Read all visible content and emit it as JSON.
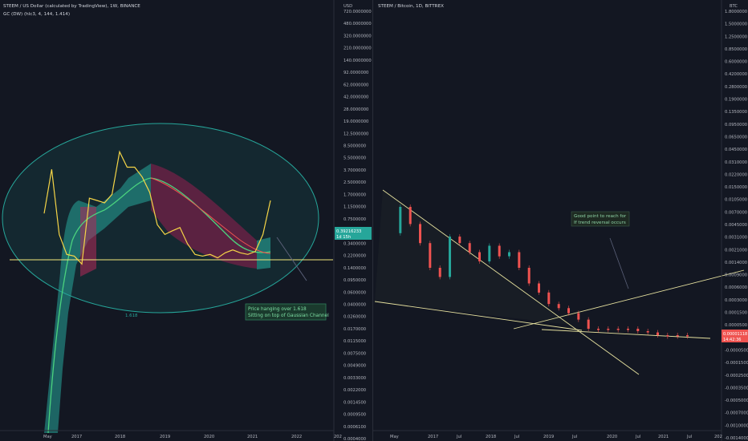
{
  "left_chart": {
    "title": "STEEM / US Dollar (calculated by TradingView), 1W, BINANCE",
    "indicator": "GC (DW) (hlc3, 4, 144, 1.414)",
    "currency": "USD",
    "price_ticks": [
      "720.0000000",
      "480.0000000",
      "320.0000000",
      "210.0000000",
      "140.0000000",
      "92.0000000",
      "62.0000000",
      "42.0000000",
      "28.0000000",
      "19.0000000",
      "12.5000000",
      "8.5000000",
      "5.5000000",
      "3.7000000",
      "2.5000000",
      "1.7000000",
      "1.1500000",
      "0.7500000",
      "0.5100000",
      "0.3400000",
      "0.2200000",
      "0.1400000",
      "0.0950000",
      "0.0600000",
      "0.0400000",
      "0.0260000",
      "0.0170000",
      "0.0115000",
      "0.0075000",
      "0.0049000",
      "0.0033000",
      "0.0022000",
      "0.0014500",
      "0.0009500",
      "0.0006100",
      "0.0004000"
    ],
    "time_ticks": [
      "May",
      "2017",
      "2018",
      "2019",
      "2020",
      "2021",
      "2022",
      "202"
    ],
    "last_price": "0.39216233",
    "last_price_countdown": "1d 15h",
    "fib_label": "1.618",
    "annotation_line1": "Price hanging over 1.618",
    "annotation_line2": "Sitting on top of Gaussian Channel"
  },
  "right_chart": {
    "title": "STEEM / Bitcoin, 1D, BITTREX",
    "currency": "BTC",
    "price_ticks": [
      "1.8000000",
      "1.5000000",
      "1.2500000",
      "0.8500000",
      "0.6000000",
      "0.4200000",
      "0.2800000",
      "0.1900000",
      "0.1350000",
      "0.0950000",
      "0.0650000",
      "0.0450000",
      "0.0310000",
      "0.0220000",
      "0.0150000",
      "0.0105000",
      "0.0070000",
      "0.0045000",
      "0.0031000",
      "0.0021000",
      "0.0014000",
      "0.0009000",
      "0.0006000",
      "0.0003000",
      "0.0001500",
      "0.0000500",
      "0.0000000",
      "-0.0000500",
      "-0.0001500",
      "-0.0002500",
      "-0.0003500",
      "-0.0005000",
      "-0.0007000",
      "-0.0010000",
      "-0.0014000"
    ],
    "time_ticks": [
      "May",
      "2017",
      "Jul",
      "2018",
      "Jul",
      "2019",
      "Jul",
      "2020",
      "Jul",
      "2021",
      "Jul",
      "202"
    ],
    "last_price": "0.00001118",
    "last_price_countdown": "14:42:36",
    "annotation_line1": "Good point to reach for",
    "annotation_line2": "If trend reversal occurs"
  },
  "chart_data": [
    {
      "type": "line",
      "title": "STEEM / US Dollar (calculated by TradingView), 1W, BINANCE",
      "ylabel": "USD",
      "log_scale": true,
      "x": [
        "2016-05",
        "2016-07",
        "2016-09",
        "2016-11",
        "2017-01",
        "2017-03",
        "2017-05",
        "2017-07",
        "2017-09",
        "2017-11",
        "2018-01",
        "2018-03",
        "2018-05",
        "2018-07",
        "2018-09",
        "2018-11",
        "2019-01",
        "2019-03",
        "2019-05",
        "2019-07",
        "2019-09",
        "2019-11",
        "2020-01",
        "2020-03",
        "2020-05",
        "2020-07",
        "2020-09",
        "2020-11",
        "2021-01",
        "2021-03",
        "2021-05"
      ],
      "series": [
        {
          "values": [
            0.75,
            3.7,
            0.35,
            0.17,
            0.16,
            0.12,
            1.3,
            1.2,
            1.1,
            1.5,
            7.0,
            4.0,
            4.0,
            2.8,
            1.6,
            0.5,
            0.35,
            0.4,
            0.45,
            0.25,
            0.17,
            0.16,
            0.17,
            0.15,
            0.18,
            0.2,
            0.18,
            0.17,
            0.19,
            0.35,
            1.2
          ]
        }
      ],
      "legend": "GC (DW) (hlc3, 4, 144, 1.414)",
      "annotations": [
        "1.618",
        "Price hanging over 1.618",
        "Sitting on top of Gaussian Channel"
      ],
      "last_price": 0.39216233
    },
    {
      "type": "line",
      "title": "STEEM / Bitcoin, 1D, BITTREX",
      "ylabel": "BTC",
      "x": [
        "2016-05",
        "2016-07",
        "2016-09",
        "2016-11",
        "2017-01",
        "2017-03",
        "2017-05",
        "2017-07",
        "2017-09",
        "2017-11",
        "2018-01",
        "2018-03",
        "2018-05",
        "2018-07",
        "2018-09",
        "2018-11",
        "2019-01",
        "2019-03",
        "2019-05",
        "2019-07",
        "2019-09",
        "2019-11",
        "2020-01",
        "2020-03",
        "2020-05",
        "2020-07",
        "2020-09",
        "2020-11",
        "2021-01",
        "2021-03",
        "2021-05"
      ],
      "series": [
        {
          "values": [
            0.0014,
            0.0045,
            0.0021,
            0.0009,
            0.0003,
            0.0002,
            0.0012,
            0.0009,
            0.0006,
            0.0004,
            0.0008,
            0.0005,
            0.0006,
            0.0003,
            0.00015,
            0.0001,
            6e-05,
            5e-05,
            4e-05,
            3e-05,
            2e-05,
            2e-05,
            2e-05,
            2e-05,
            2e-05,
            1.8e-05,
            1.7e-05,
            1.5e-05,
            1.4e-05,
            1.3e-05,
            1.1e-05
          ]
        }
      ],
      "annotations": [
        "Good point to reach for",
        "If trend reversal occurs"
      ],
      "last_price": 1.118e-05
    }
  ]
}
